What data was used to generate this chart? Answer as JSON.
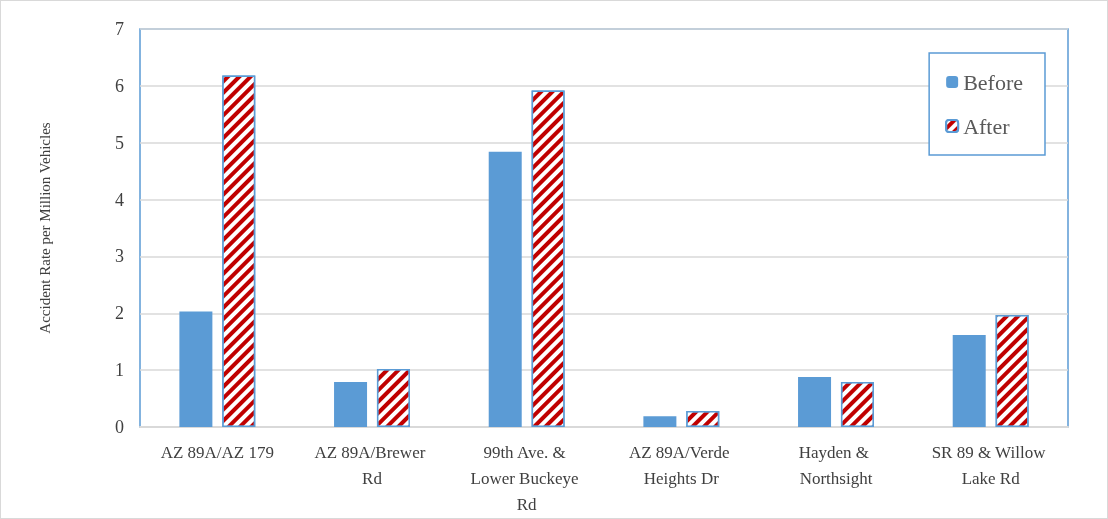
{
  "chart_data": {
    "type": "bar",
    "ylabel": "Accident Rate per Million Vehicles",
    "categories": [
      "AZ 89A/AZ 179",
      "AZ 89A/Brewer Rd",
      "99th Ave. & Lower Buckeye Rd",
      "AZ 89A/Verde Heights Dr",
      "Hayden & Northsight",
      "SR 89 & Willow Lake Rd"
    ],
    "series": [
      {
        "name": "Before",
        "color": "#5b9bd5",
        "values": [
          2.03,
          0.79,
          4.84,
          0.19,
          0.88,
          1.62
        ]
      },
      {
        "name": "After",
        "color": "#c00000",
        "values": [
          6.18,
          1.02,
          5.92,
          0.28,
          0.79,
          1.97
        ]
      }
    ],
    "ylim": [
      0,
      7
    ],
    "yticks": [
      0,
      1,
      2,
      3,
      4,
      5,
      6,
      7
    ],
    "grid": "y",
    "legend": "top right"
  }
}
